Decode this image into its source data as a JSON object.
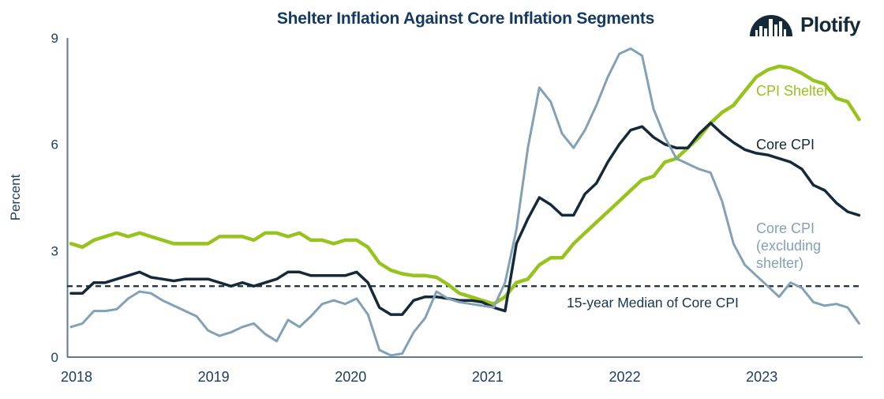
{
  "header": {
    "brand": "Plotify"
  },
  "chart_data": {
    "type": "line",
    "title": "Shelter Inflation Against Core Inflation Segments",
    "ylabel": "Percent",
    "ylim": [
      0,
      9
    ],
    "yticks": [
      0,
      3,
      6,
      9
    ],
    "xticks": [
      "2018",
      "2019",
      "2020",
      "2021",
      "2022",
      "2023"
    ],
    "x_period": "monthly, Jan 2018 - Oct 2023",
    "grid": "off",
    "legend_position": "inline-labels-right",
    "reference_line": {
      "label": "15-year Median of Core CPI",
      "value": 2.0,
      "style": "dashed",
      "color": "#233848"
    },
    "series": [
      {
        "name": "CPI Shelter",
        "color": "#96c31e",
        "values": [
          3.2,
          3.1,
          3.3,
          3.4,
          3.5,
          3.4,
          3.5,
          3.4,
          3.3,
          3.2,
          3.2,
          3.2,
          3.2,
          3.4,
          3.4,
          3.4,
          3.3,
          3.5,
          3.5,
          3.4,
          3.5,
          3.3,
          3.3,
          3.2,
          3.3,
          3.3,
          3.1,
          2.65,
          2.45,
          2.35,
          2.3,
          2.3,
          2.25,
          2.05,
          1.8,
          1.7,
          1.6,
          1.5,
          1.7,
          2.1,
          2.2,
          2.6,
          2.8,
          2.8,
          3.2,
          3.5,
          3.8,
          4.1,
          4.4,
          4.7,
          5.0,
          5.1,
          5.5,
          5.6,
          5.9,
          6.2,
          6.6,
          6.9,
          7.1,
          7.5,
          7.9,
          8.1,
          8.2,
          8.15,
          8.0,
          7.8,
          7.7,
          7.3,
          7.2,
          6.7
        ]
      },
      {
        "name": "Core CPI",
        "color": "#14293a",
        "values": [
          1.8,
          1.8,
          2.1,
          2.1,
          2.2,
          2.3,
          2.4,
          2.25,
          2.2,
          2.15,
          2.2,
          2.2,
          2.2,
          2.1,
          2.0,
          2.1,
          2.0,
          2.1,
          2.2,
          2.4,
          2.4,
          2.3,
          2.3,
          2.3,
          2.3,
          2.4,
          2.1,
          1.4,
          1.2,
          1.2,
          1.6,
          1.7,
          1.7,
          1.65,
          1.6,
          1.6,
          1.55,
          1.4,
          1.3,
          3.2,
          3.9,
          4.5,
          4.3,
          4.0,
          4.0,
          4.6,
          4.9,
          5.5,
          6.0,
          6.4,
          6.5,
          6.2,
          6.0,
          5.9,
          5.9,
          6.3,
          6.6,
          6.3,
          6.05,
          5.85,
          5.75,
          5.7,
          5.6,
          5.5,
          5.3,
          4.85,
          4.7,
          4.35,
          4.1,
          4.0
        ]
      },
      {
        "name": "Core CPI (excluding shelter)",
        "color": "#82a1b6",
        "values": [
          0.85,
          0.95,
          1.3,
          1.3,
          1.35,
          1.65,
          1.85,
          1.8,
          1.6,
          1.45,
          1.3,
          1.15,
          0.75,
          0.6,
          0.7,
          0.85,
          0.95,
          0.65,
          0.45,
          1.05,
          0.85,
          1.15,
          1.5,
          1.6,
          1.5,
          1.65,
          1.2,
          0.2,
          0.05,
          0.1,
          0.7,
          1.1,
          1.85,
          1.65,
          1.55,
          1.5,
          1.45,
          1.4,
          2.1,
          3.6,
          5.9,
          7.6,
          7.2,
          6.3,
          5.9,
          6.4,
          7.1,
          7.9,
          8.55,
          8.7,
          8.5,
          7.0,
          6.2,
          5.6,
          5.45,
          5.3,
          5.2,
          4.4,
          3.2,
          2.6,
          2.3,
          2.0,
          1.7,
          2.1,
          1.95,
          1.55,
          1.45,
          1.5,
          1.4,
          0.95
        ]
      }
    ]
  },
  "colors": {
    "title_text": "#143a63",
    "axis_text": "#1d3c64",
    "axis_line": "#5f7b8c",
    "brand_text": "#14293a"
  }
}
